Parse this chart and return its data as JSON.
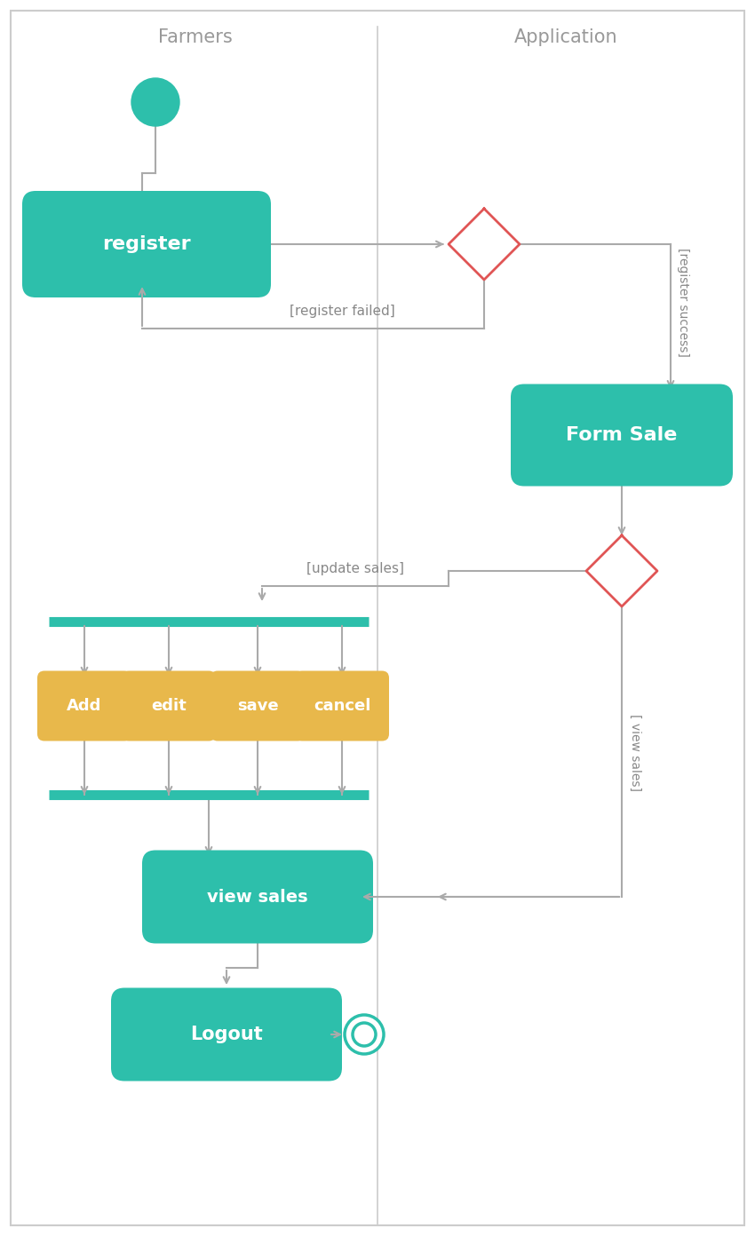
{
  "bg_color": "#ffffff",
  "border_color": "#cccccc",
  "teal_color": "#2dbfab",
  "gold_color": "#e8b84b",
  "red_color": "#e05555",
  "arrow_color": "#aaaaaa",
  "farmers_label": "Farmers",
  "application_label": "Application",
  "register_label": "register",
  "form_sale_label": "Form Sale",
  "add_label": "Add",
  "edit_label": "edit",
  "save_label": "save",
  "cancel_label": "cancel",
  "view_sales_label": "view sales",
  "logout_label": "Logout",
  "reg_failed_label": "[register failed]",
  "reg_success_label": "[register success]",
  "update_sales_label": "[update sales]",
  "view_sales_guard": "[ view sales]"
}
